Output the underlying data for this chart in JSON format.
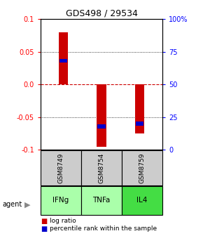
{
  "title": "GDS498 / 29534",
  "samples": [
    "GSM8749",
    "GSM8754",
    "GSM8759"
  ],
  "agents": [
    "IFNg",
    "TNFa",
    "IL4"
  ],
  "log_ratios": [
    0.08,
    -0.095,
    -0.075
  ],
  "percentile_ranks": [
    0.68,
    0.18,
    0.2
  ],
  "ylim": [
    -0.1,
    0.1
  ],
  "yticks_left": [
    -0.1,
    -0.05,
    0.0,
    0.05,
    0.1
  ],
  "yticks_right": [
    0,
    25,
    50,
    75,
    100
  ],
  "bar_color": "#cc0000",
  "pct_color": "#0000cc",
  "zero_color": "#cc0000",
  "sample_bg": "#cccccc",
  "agent_colors": [
    "#aaffaa",
    "#aaffaa",
    "#44dd44"
  ],
  "background": "#ffffff",
  "bar_width": 0.25
}
